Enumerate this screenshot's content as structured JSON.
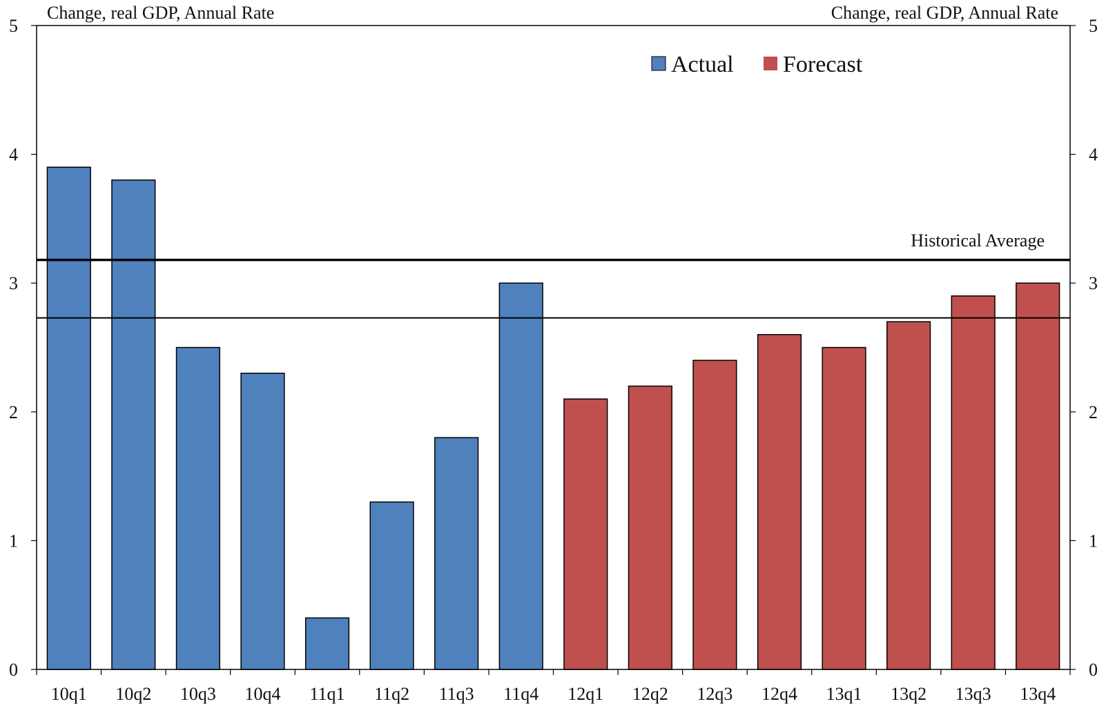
{
  "chart_data": {
    "type": "bar",
    "categories": [
      "10q1",
      "10q2",
      "10q3",
      "10q4",
      "11q1",
      "11q2",
      "11q3",
      "11q4",
      "12q1",
      "12q2",
      "12q3",
      "12q4",
      "13q1",
      "13q2",
      "13q3",
      "13q4"
    ],
    "values": [
      3.9,
      3.8,
      2.5,
      2.3,
      0.4,
      1.3,
      1.8,
      3.0,
      2.1,
      2.2,
      2.4,
      2.6,
      2.5,
      2.7,
      2.9,
      3.0
    ],
    "bar_group": [
      "actual",
      "actual",
      "actual",
      "actual",
      "actual",
      "actual",
      "actual",
      "actual",
      "forecast",
      "forecast",
      "forecast",
      "forecast",
      "forecast",
      "forecast",
      "forecast",
      "forecast"
    ],
    "series": [
      {
        "name": "Actual",
        "color": "#4F81BD",
        "key": "actual"
      },
      {
        "name": "Forecast",
        "color": "#C0504D",
        "key": "forecast"
      }
    ],
    "ylabel_left": "Change, real GDP, Annual Rate",
    "ylabel_right": "Change, real GDP, Annual Rate",
    "ylim": [
      0,
      5
    ],
    "yticks": [
      0,
      1,
      2,
      3,
      4,
      5
    ],
    "reference_lines": [
      {
        "value": 3.18,
        "label": "Historical Average",
        "weight": "thick"
      },
      {
        "value": 2.73,
        "label": "",
        "weight": "thin"
      }
    ],
    "grid": false,
    "legend_position": "top-center"
  }
}
